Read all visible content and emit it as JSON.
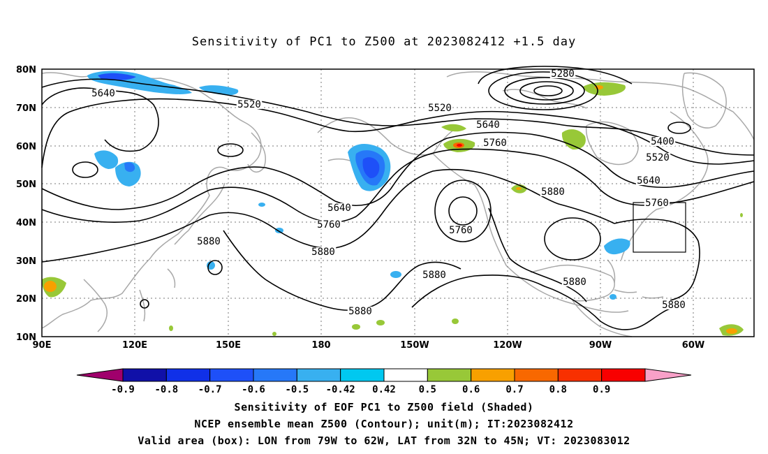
{
  "title": "Sensitivity of PC1 to Z500 at 2023082412 +1.5 day",
  "lat_labels": [
    "80N",
    "70N",
    "60N",
    "50N",
    "40N",
    "30N",
    "20N",
    "10N"
  ],
  "lon_labels": [
    "90E",
    "120E",
    "150E",
    "180",
    "150W",
    "120W",
    "90W",
    "60W"
  ],
  "contour_labels": [
    "5640",
    "5520",
    "5280",
    "5520",
    "5640",
    "5760",
    "5400",
    "5520",
    "5640",
    "5760",
    "5880",
    "5640",
    "5760",
    "5760",
    "5880",
    "5880",
    "5880",
    "5880",
    "5880",
    "5880"
  ],
  "colorbar": {
    "tick_labels": [
      "-0.9",
      "-0.8",
      "-0.7",
      "-0.6",
      "-0.5",
      "-0.42",
      "0.42",
      "0.5",
      "0.6",
      "0.7",
      "0.8",
      "0.9"
    ],
    "colors": [
      "#a0006c",
      "#1010a8",
      "#1030e8",
      "#1e50f8",
      "#2678f8",
      "#38b0f0",
      "#00c8f0",
      "#ffffff",
      "#98c838",
      "#f8a000",
      "#f86800",
      "#f83000",
      "#f80000",
      "#f8a0c8"
    ]
  },
  "footer": {
    "line1": "Sensitivity of EOF PC1 to Z500 field (Shaded)",
    "line2": "NCEP ensemble mean Z500 (Contour); unit(m); IT:2023082412",
    "line3": "Valid area (box): LON from 79W to 62W, LAT from 32N to 45N; VT: 2023083012"
  }
}
